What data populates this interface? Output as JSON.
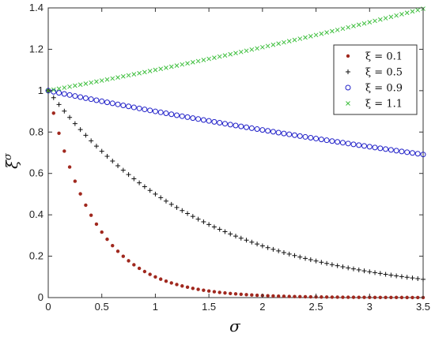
{
  "chart_data": {
    "type": "scatter",
    "title": "",
    "xlabel": "σ",
    "ylabel_base": "ξ",
    "ylabel_sup": "σ",
    "xlim": [
      0,
      3.5
    ],
    "ylim": [
      0,
      1.4
    ],
    "x_ticks": [
      "0",
      "0.5",
      "1",
      "1.5",
      "2",
      "2.5",
      "3",
      "3.5"
    ],
    "y_ticks": [
      "0",
      "0.2",
      "0.4",
      "0.6",
      "0.8",
      "1",
      "1.2",
      "1.4"
    ],
    "grid": false,
    "legend_position": "top-right",
    "x_samples": {
      "start": 0,
      "end": 3.5,
      "count": 71
    },
    "series": [
      {
        "name": "ξ = 0.1",
        "xi": 0.1,
        "marker": "dot",
        "color": "#a0281e"
      },
      {
        "name": "ξ = 0.5",
        "xi": 0.5,
        "marker": "plus",
        "color": "#111111"
      },
      {
        "name": "ξ = 0.9",
        "xi": 0.9,
        "marker": "circle",
        "color": "#1f1fc8"
      },
      {
        "name": "ξ = 1.1",
        "xi": 1.1,
        "marker": "x",
        "color": "#3fbf3f"
      }
    ]
  }
}
